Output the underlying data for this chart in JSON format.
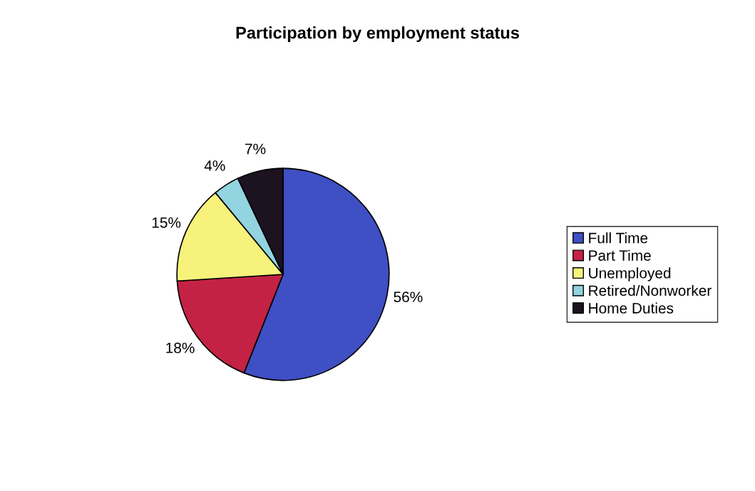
{
  "chart_data": {
    "type": "pie",
    "title": "Participation by employment status",
    "categories": [
      "Full Time",
      "Part Time",
      "Unemployed",
      "Retired/Nonworker",
      "Home Duties"
    ],
    "values": [
      56,
      18,
      15,
      4,
      7
    ],
    "colors": [
      "#3f4fc4",
      "#c42245",
      "#f6f27c",
      "#92d4e0",
      "#1c1220"
    ],
    "value_labels": [
      "56%",
      "18%",
      "15%",
      "4%",
      "7%"
    ],
    "legend": "right"
  }
}
